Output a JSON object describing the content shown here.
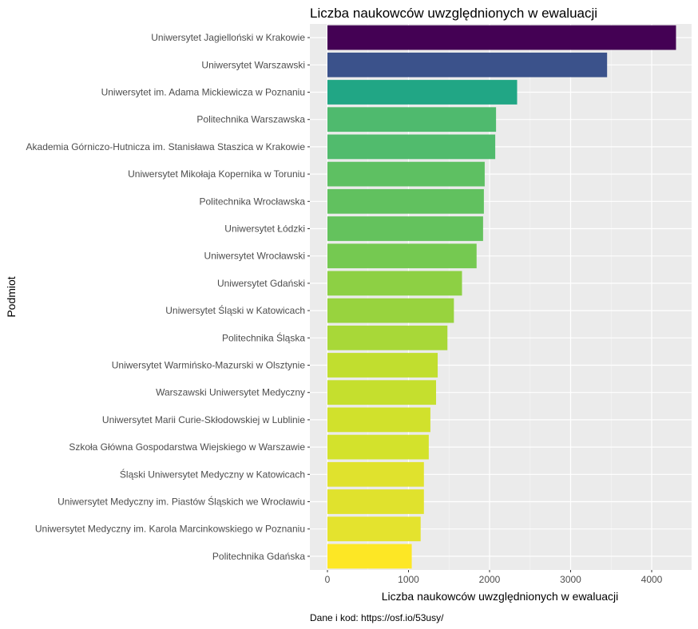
{
  "chart_data": {
    "type": "bar",
    "orientation": "horizontal",
    "title": "Liczba naukowców uwzględnionych w ewaluacji",
    "xlabel": "Liczba naukowców uwzględnionych w ewaluacji",
    "ylabel": "Podmiot",
    "caption": "Dane i kod: https://osf.io/53usy/",
    "xlim": [
      0,
      4500
    ],
    "x_ticks": [
      0,
      1000,
      2000,
      3000,
      4000
    ],
    "grid": true,
    "legend": "none",
    "categories": [
      "Uniwersytet Jagielloński w Krakowie",
      "Uniwersytet Warszawski",
      "Uniwersytet im. Adama Mickiewicza w Poznaniu",
      "Politechnika Warszawska",
      "Akademia Górniczo-Hutnicza im. Stanisława Staszica w Krakowie",
      "Uniwersytet Mikołaja Kopernika w Toruniu",
      "Politechnika Wrocławska",
      "Uniwersytet Łódzki",
      "Uniwersytet Wrocławski",
      "Uniwersytet Gdański",
      "Uniwersytet Śląski w Katowicach",
      "Politechnika Śląska",
      "Uniwersytet Warmińsko-Mazurski w Olsztynie",
      "Warszawski Uniwersytet Medyczny",
      "Uniwersytet Marii Curie-Skłodowskiej w Lublinie",
      "Szkoła Główna Gospodarstwa Wiejskiego w Warszawie",
      "Śląski Uniwersytet Medyczny w Katowicach",
      "Uniwersytet Medyczny im. Piastów Śląskich we Wrocławiu",
      "Uniwersytet Medyczny im. Karola Marcinkowskiego w Poznaniu",
      "Politechnika Gdańska"
    ],
    "values": [
      4300,
      3450,
      2340,
      2080,
      2070,
      1940,
      1930,
      1920,
      1840,
      1660,
      1560,
      1480,
      1360,
      1340,
      1270,
      1250,
      1190,
      1190,
      1150,
      1040
    ],
    "colors": [
      "#440154",
      "#3b528b",
      "#21a685",
      "#4fba6e",
      "#51bb6d",
      "#5ec062",
      "#61c15f",
      "#64c25d",
      "#75c951",
      "#8dd044",
      "#98d33e",
      "#a8d838",
      "#c1de2f",
      "#c5df2e",
      "#d1e12c",
      "#d3e22c",
      "#e0e22d",
      "#e0e22d",
      "#e4e32e",
      "#fde725"
    ]
  }
}
